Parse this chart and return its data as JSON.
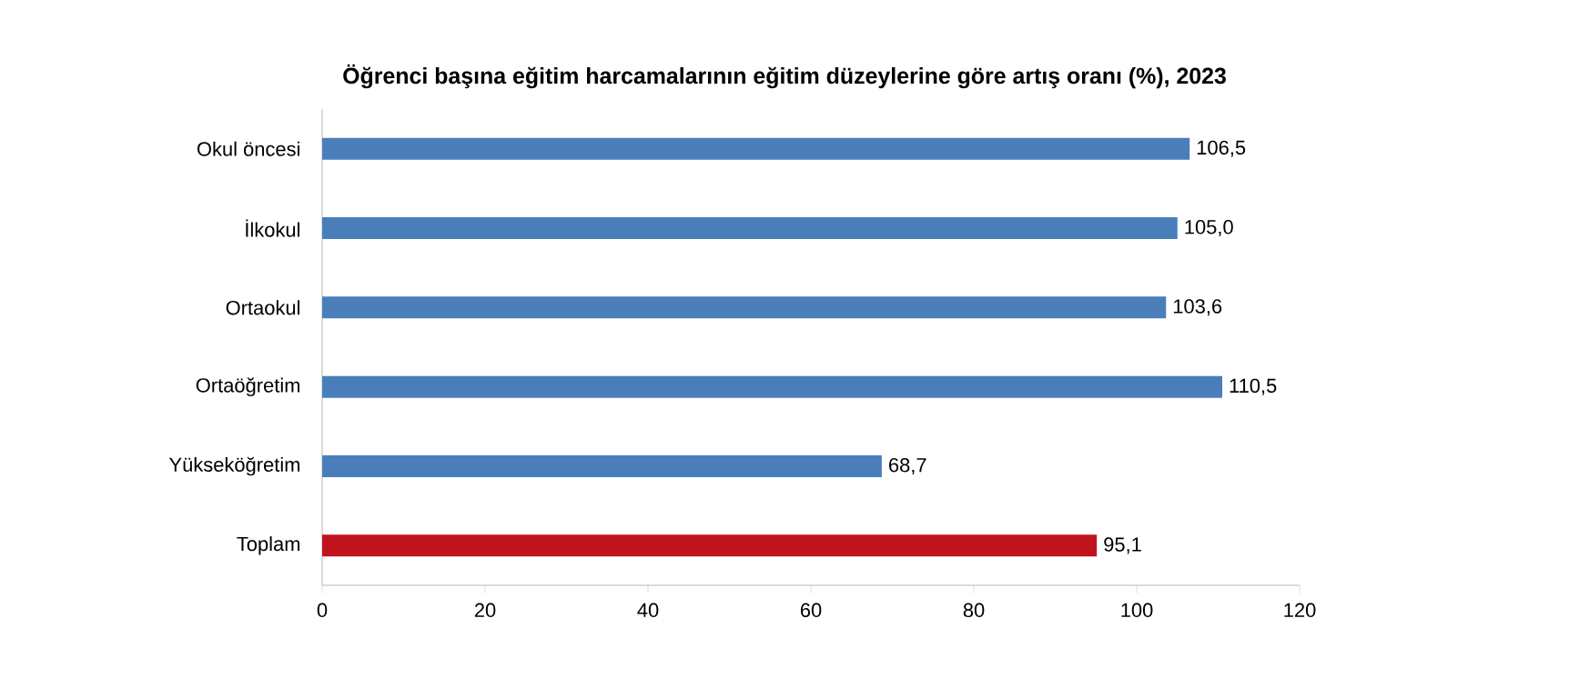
{
  "chart_data": {
    "type": "bar",
    "orientation": "horizontal",
    "title": "Öğrenci başına eğitim harcamalarının eğitim düzeylerine göre artış oranı (%), 2023",
    "categories": [
      "Okul öncesi",
      "İlkokul",
      "Ortaokul",
      "Ortaöğretim",
      "Yükseköğretim",
      "Toplam"
    ],
    "values": [
      106.5,
      105.0,
      103.6,
      110.5,
      68.7,
      95.1
    ],
    "value_labels": [
      "106,5",
      "105,0",
      "103,6",
      "110,5",
      "68,7",
      "95,1"
    ],
    "colors": [
      "#4a7ebb",
      "#4a7ebb",
      "#4a7ebb",
      "#4a7ebb",
      "#4a7ebb",
      "#c0141c"
    ],
    "xlim": [
      0,
      120
    ],
    "xticks": [
      0,
      20,
      40,
      60,
      80,
      100,
      120
    ],
    "grid": false
  }
}
